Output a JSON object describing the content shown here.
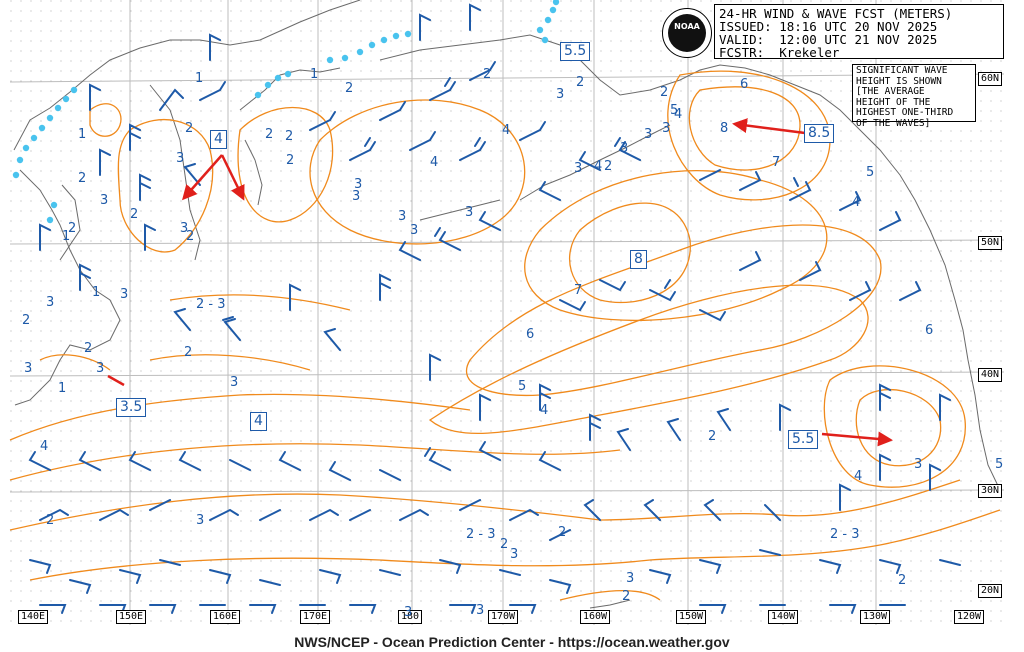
{
  "header": {
    "line1": "24-HR WIND & WAVE FCST (METERS)",
    "line2": "ISSUED: 18:16 UTC 20 NOV 2025",
    "line3": "VALID:  12:00 UTC 21 NOV 2025",
    "line4": "FCSTR:  Krekeler"
  },
  "logo_text": "NOAA",
  "note": {
    "line1": "SIGNIFICANT WAVE",
    "line2": "HEIGHT IS SHOWN",
    "line3": "[THE AVERAGE",
    "line4": "HEIGHT OF THE",
    "line5": "HIGHEST ONE-THIRD",
    "line6": "OF THE WAVES]"
  },
  "footer": "NWS/NCEP - Ocean Prediction Center - https://ocean.weather.gov",
  "longitudes": [
    "140E",
    "150E",
    "160E",
    "170E",
    "180",
    "170W",
    "160W",
    "150W",
    "140W",
    "130W",
    "120W"
  ],
  "latitudes": [
    "60N",
    "50N",
    "40N",
    "30N",
    "20N"
  ],
  "highlight_boxes": [
    "5.5",
    "4",
    "8.5",
    "8",
    "3.5",
    "4",
    "5.5"
  ],
  "contour_labels": [
    "1",
    "1",
    "1",
    "2",
    "2",
    "3",
    "2",
    "2",
    "2",
    "3",
    "1",
    "2",
    "2",
    "3",
    "2",
    "3",
    "3",
    "3",
    "2",
    "3",
    "4",
    "3",
    "2 - 3",
    "2",
    "3",
    "3",
    "1",
    "2",
    "3",
    "2",
    "4",
    "5",
    "3",
    "4",
    "2",
    "3",
    "3",
    "2",
    "4",
    "3",
    "4",
    "3",
    "6",
    "8",
    "7",
    "6",
    "5",
    "7",
    "6",
    "5",
    "4",
    "3",
    "4",
    "2",
    "5",
    "4",
    "3",
    "2",
    "2 - 3",
    "2",
    "2",
    "2 - 3",
    "3",
    "3",
    "3",
    "2",
    "3",
    "2",
    "3",
    "2",
    "3",
    "1",
    "2"
  ],
  "colors": {
    "contour": "#f08a1c",
    "barb": "#1e5aa8",
    "coast": "#6a6a6a",
    "ice": "#49c3ee",
    "arrow": "#e0201b",
    "grid": "#bdbdbd"
  }
}
